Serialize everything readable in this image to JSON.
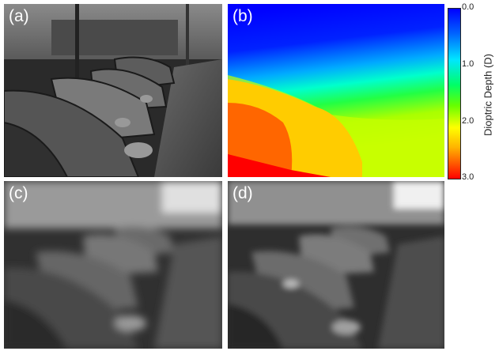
{
  "panels": {
    "a": {
      "label": "(a)"
    },
    "b": {
      "label": "(b)"
    },
    "c": {
      "label": "(c)"
    },
    "d": {
      "label": "(d)"
    }
  },
  "colorbar": {
    "title": "Dioptric Depth (D)",
    "ticks": [
      "0.0",
      "1.0",
      "2.0",
      "3.0"
    ],
    "colors": [
      "#0000ff",
      "#00e6ff",
      "#00ff66",
      "#ffff00",
      "#ff8000",
      "#ff0000"
    ]
  }
}
